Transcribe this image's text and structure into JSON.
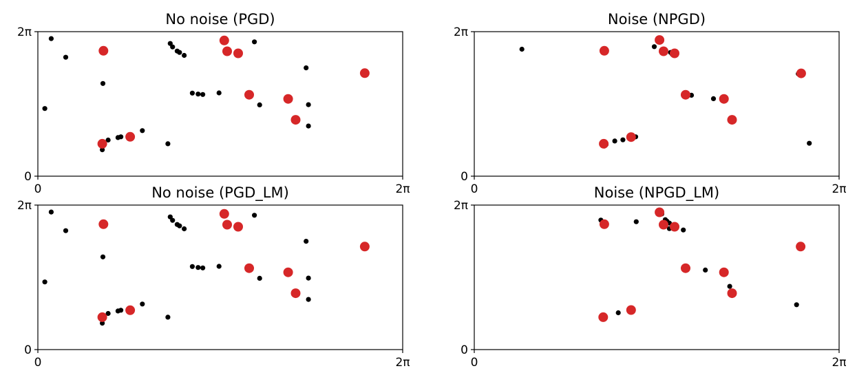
{
  "chart_data": [
    {
      "type": "scatter",
      "title": "No noise (PGD)",
      "xlabel": "",
      "ylabel": "",
      "xlim": [
        "0",
        "2π"
      ],
      "ylim": [
        "0",
        "2π"
      ],
      "xticks": [
        "0",
        "2π"
      ],
      "yticks": [
        "0",
        "2π"
      ],
      "grid": false,
      "series": [
        {
          "color": "#000000",
          "size": "small",
          "points": [
            [
              0.23,
              5.98
            ],
            [
              0.48,
              5.17
            ],
            [
              0.12,
              2.94
            ],
            [
              1.12,
              4.03
            ],
            [
              1.11,
              1.15
            ],
            [
              1.12,
              1.41
            ],
            [
              1.21,
              1.57
            ],
            [
              1.38,
              1.68
            ],
            [
              1.43,
              1.71
            ],
            [
              1.8,
              1.98
            ],
            [
              2.24,
              1.41
            ],
            [
              2.28,
              5.77
            ],
            [
              2.32,
              5.62
            ],
            [
              2.4,
              5.44
            ],
            [
              2.44,
              5.38
            ],
            [
              2.52,
              5.25
            ],
            [
              2.66,
              3.61
            ],
            [
              2.76,
              3.57
            ],
            [
              2.84,
              3.55
            ],
            [
              3.12,
              3.62
            ],
            [
              3.73,
              5.84
            ],
            [
              3.82,
              3.1
            ],
            [
              4.62,
              4.71
            ],
            [
              4.66,
              3.11
            ],
            [
              4.66,
              2.18
            ]
          ]
        },
        {
          "color": "#d62728",
          "size": "large",
          "points": [
            [
              1.13,
              5.45
            ],
            [
              1.11,
              1.41
            ],
            [
              1.59,
              1.71
            ],
            [
              3.21,
              5.9
            ],
            [
              3.26,
              5.43
            ],
            [
              3.45,
              5.34
            ],
            [
              3.64,
              3.54
            ],
            [
              4.31,
              3.36
            ],
            [
              4.44,
              2.45
            ],
            [
              5.63,
              4.48
            ]
          ]
        }
      ]
    },
    {
      "type": "scatter",
      "title": "Noise (NPGD)",
      "xlabel": "",
      "ylabel": "",
      "xlim": [
        "0",
        "2π"
      ],
      "ylim": [
        "0",
        "2π"
      ],
      "xticks": [
        "0",
        "2π"
      ],
      "yticks": [
        "0",
        "2π"
      ],
      "grid": false,
      "series": [
        {
          "color": "#000000",
          "size": "small",
          "points": [
            [
              0.82,
              5.52
            ],
            [
              2.22,
              1.44
            ],
            [
              2.24,
              1.31
            ],
            [
              2.27,
              1.38
            ],
            [
              2.42,
              1.53
            ],
            [
              2.56,
              1.58
            ],
            [
              2.7,
              1.68
            ],
            [
              2.78,
              1.71
            ],
            [
              3.1,
              5.63
            ],
            [
              3.25,
              5.45
            ],
            [
              3.38,
              5.38
            ],
            [
              3.41,
              5.3
            ],
            [
              3.6,
              3.53
            ],
            [
              3.68,
              3.55
            ],
            [
              3.74,
              3.52
            ],
            [
              4.12,
              3.37
            ],
            [
              4.4,
              2.45
            ],
            [
              4.44,
              2.42
            ],
            [
              5.58,
              4.45
            ],
            [
              5.63,
              4.42
            ],
            [
              5.77,
              1.43
            ]
          ]
        },
        {
          "color": "#d62728",
          "size": "large",
          "points": [
            [
              2.24,
              5.45
            ],
            [
              2.23,
              1.41
            ],
            [
              2.7,
              1.7
            ],
            [
              3.19,
              5.92
            ],
            [
              3.26,
              5.43
            ],
            [
              3.45,
              5.34
            ],
            [
              3.64,
              3.54
            ],
            [
              4.3,
              3.36
            ],
            [
              4.44,
              2.45
            ],
            [
              5.63,
              4.47
            ]
          ]
        }
      ]
    },
    {
      "type": "scatter",
      "title": "No noise (PGD_LM)",
      "xlabel": "",
      "ylabel": "",
      "xlim": [
        "0",
        "2π"
      ],
      "ylim": [
        "0",
        "2π"
      ],
      "xticks": [
        "0",
        "2π"
      ],
      "yticks": [
        "0",
        "2π"
      ],
      "grid": false,
      "series": [
        {
          "color": "#000000",
          "size": "small",
          "points": [
            [
              0.23,
              5.98
            ],
            [
              0.48,
              5.17
            ],
            [
              0.12,
              2.94
            ],
            [
              1.12,
              4.03
            ],
            [
              1.11,
              1.15
            ],
            [
              1.12,
              1.41
            ],
            [
              1.21,
              1.57
            ],
            [
              1.38,
              1.68
            ],
            [
              1.43,
              1.71
            ],
            [
              1.8,
              1.98
            ],
            [
              2.24,
              1.41
            ],
            [
              2.28,
              5.77
            ],
            [
              2.32,
              5.62
            ],
            [
              2.4,
              5.44
            ],
            [
              2.44,
              5.38
            ],
            [
              2.52,
              5.25
            ],
            [
              2.66,
              3.61
            ],
            [
              2.76,
              3.57
            ],
            [
              2.84,
              3.55
            ],
            [
              3.12,
              3.62
            ],
            [
              3.73,
              5.84
            ],
            [
              3.82,
              3.1
            ],
            [
              4.62,
              4.71
            ],
            [
              4.66,
              3.11
            ],
            [
              4.66,
              2.18
            ]
          ]
        },
        {
          "color": "#d62728",
          "size": "large",
          "points": [
            [
              1.13,
              5.45
            ],
            [
              1.11,
              1.41
            ],
            [
              1.59,
              1.71
            ],
            [
              3.21,
              5.9
            ],
            [
              3.26,
              5.43
            ],
            [
              3.45,
              5.34
            ],
            [
              3.64,
              3.54
            ],
            [
              4.31,
              3.36
            ],
            [
              4.44,
              2.45
            ],
            [
              5.63,
              4.48
            ]
          ]
        }
      ]
    },
    {
      "type": "scatter",
      "title": "Noise (NPGD_LM)",
      "xlabel": "",
      "ylabel": "",
      "xlim": [
        "0",
        "2π"
      ],
      "ylim": [
        "0",
        "2π"
      ],
      "xticks": [
        "0",
        "2π"
      ],
      "yticks": [
        "0",
        "2π"
      ],
      "grid": false,
      "series": [
        {
          "color": "#000000",
          "size": "small",
          "points": [
            [
              2.18,
              5.63
            ],
            [
              2.48,
              1.6
            ],
            [
              2.79,
              5.56
            ],
            [
              3.19,
              6.06
            ],
            [
              3.23,
              5.9
            ],
            [
              3.29,
              5.65
            ],
            [
              3.32,
              5.58
            ],
            [
              3.36,
              5.5
            ],
            [
              3.36,
              5.26
            ],
            [
              3.47,
              5.3
            ],
            [
              3.6,
              5.2
            ],
            [
              3.98,
              3.46
            ],
            [
              4.4,
              2.75
            ],
            [
              5.55,
              1.95
            ],
            [
              5.65,
              4.42
            ]
          ]
        },
        {
          "color": "#d62728",
          "size": "large",
          "points": [
            [
              2.24,
              5.45
            ],
            [
              2.22,
              1.41
            ],
            [
              2.7,
              1.72
            ],
            [
              3.19,
              5.97
            ],
            [
              3.26,
              5.43
            ],
            [
              3.45,
              5.34
            ],
            [
              3.64,
              3.54
            ],
            [
              4.3,
              3.36
            ],
            [
              4.44,
              2.45
            ],
            [
              5.62,
              4.48
            ]
          ]
        }
      ]
    }
  ]
}
